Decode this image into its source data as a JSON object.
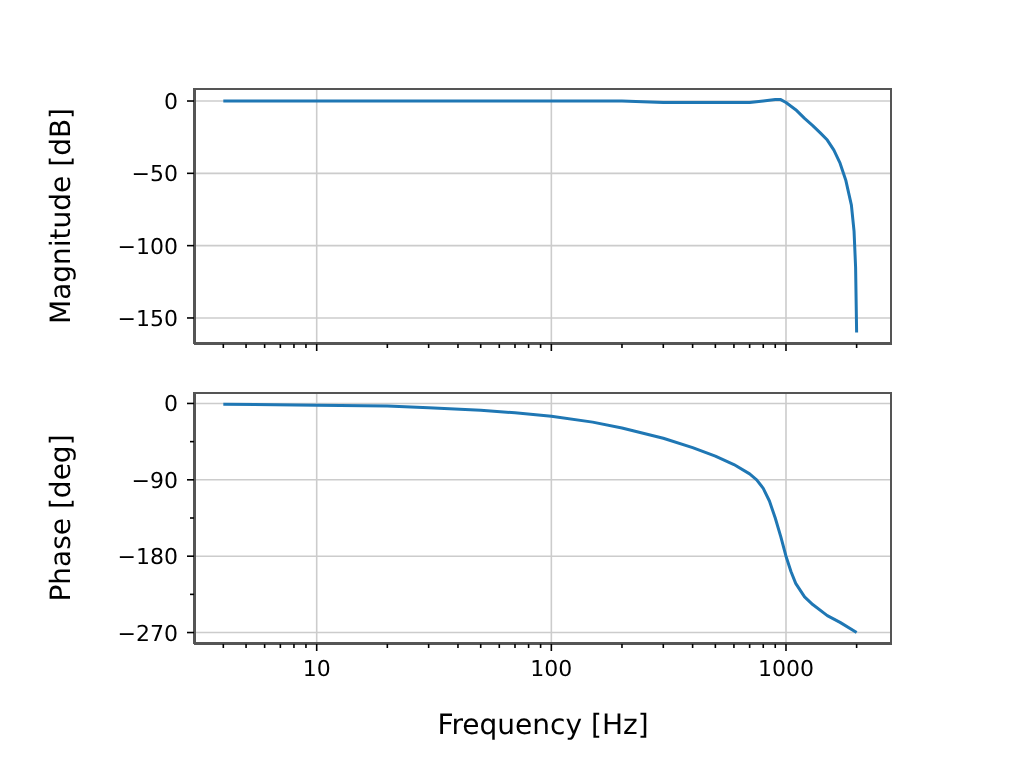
{
  "chart_data": [
    {
      "type": "line",
      "ylabel": "Magnitude [dB]",
      "log": "x",
      "grid": true,
      "tick_labels": "y",
      "x": [
        4,
        10,
        30,
        100,
        200,
        300,
        400,
        500,
        600,
        700,
        800,
        900,
        950,
        1000,
        1100,
        1200,
        1300,
        1400,
        1500,
        1600,
        1700,
        1800,
        1900,
        1950,
        1980,
        2000
      ],
      "series": [
        {
          "color": "#1f77b4",
          "values": [
            0,
            0,
            0,
            0,
            0,
            -1,
            -1,
            -1,
            -1,
            -1,
            0,
            1,
            1,
            -1,
            -6,
            -12,
            -17,
            -22,
            -27,
            -34,
            -43,
            -55,
            -72,
            -90,
            -115,
            -160
          ]
        }
      ],
      "xlim": [
        3,
        2830
      ],
      "xticks": [
        {
          "value": 4,
          "label": null
        },
        {
          "value": 5,
          "label": null
        },
        {
          "value": 6,
          "label": null
        },
        {
          "value": 7,
          "label": null
        },
        {
          "value": 8,
          "label": null
        },
        {
          "value": 9,
          "label": null
        },
        10,
        {
          "value": 20,
          "label": null
        },
        {
          "value": 30,
          "label": null
        },
        {
          "value": 40,
          "label": null
        },
        {
          "value": 50,
          "label": null
        },
        {
          "value": 60,
          "label": null
        },
        {
          "value": 70,
          "label": null
        },
        {
          "value": 80,
          "label": null
        },
        {
          "value": 90,
          "label": null
        },
        100,
        {
          "value": 200,
          "label": null
        },
        {
          "value": 300,
          "label": null
        },
        {
          "value": 400,
          "label": null
        },
        {
          "value": 500,
          "label": null
        },
        {
          "value": 600,
          "label": null
        },
        {
          "value": 700,
          "label": null
        },
        {
          "value": 800,
          "label": null
        },
        {
          "value": 900,
          "label": null
        },
        1000,
        {
          "value": 2000,
          "label": null
        }
      ],
      "ylim": [
        -168,
        9
      ],
      "yticks": [
        0,
        {
          "value": -50,
          "label": "−50"
        },
        {
          "value": -100,
          "label": "−100"
        },
        {
          "value": -150,
          "label": "−150"
        }
      ]
    },
    {
      "type": "line",
      "xlabel": "Frequency [Hz]",
      "ylabel": "Phase [deg]",
      "log": "x",
      "grid": true,
      "x": [
        4,
        10,
        20,
        30,
        50,
        70,
        100,
        150,
        200,
        300,
        400,
        500,
        600,
        700,
        750,
        800,
        850,
        900,
        950,
        1000,
        1050,
        1100,
        1200,
        1300,
        1500,
        1700,
        2000
      ],
      "series": [
        {
          "color": "#1f77b4",
          "values": [
            -1,
            -2,
            -3,
            -5,
            -8,
            -11,
            -15,
            -22,
            -29,
            -41,
            -52,
            -62,
            -72,
            -83,
            -90,
            -100,
            -115,
            -135,
            -157,
            -180,
            -198,
            -212,
            -228,
            -237,
            -250,
            -258,
            -270
          ]
        }
      ],
      "xlim": [
        3,
        2830
      ],
      "xticks": [
        {
          "value": 4,
          "label": null
        },
        {
          "value": 5,
          "label": null
        },
        {
          "value": 6,
          "label": null
        },
        {
          "value": 7,
          "label": null
        },
        {
          "value": 8,
          "label": null
        },
        {
          "value": 9,
          "label": null
        },
        {
          "value": 10,
          "label": "10"
        },
        {
          "value": 20,
          "label": null
        },
        {
          "value": 30,
          "label": null
        },
        {
          "value": 40,
          "label": null
        },
        {
          "value": 50,
          "label": null
        },
        {
          "value": 60,
          "label": null
        },
        {
          "value": 70,
          "label": null
        },
        {
          "value": 80,
          "label": null
        },
        {
          "value": 90,
          "label": null
        },
        {
          "value": 100,
          "label": "100"
        },
        {
          "value": 200,
          "label": null
        },
        {
          "value": 300,
          "label": null
        },
        {
          "value": 400,
          "label": null
        },
        {
          "value": 500,
          "label": null
        },
        {
          "value": 600,
          "label": null
        },
        {
          "value": 700,
          "label": null
        },
        {
          "value": 800,
          "label": null
        },
        {
          "value": 900,
          "label": null
        },
        {
          "value": 1000,
          "label": "1000"
        },
        {
          "value": 2000,
          "label": null
        }
      ],
      "ylim": [
        -283.5,
        13.5
      ],
      "yticks": [
        0,
        {
          "value": -45,
          "label": null
        },
        {
          "value": -90,
          "label": "−90"
        },
        {
          "value": -135,
          "label": null
        },
        {
          "value": -180,
          "label": "−180"
        },
        {
          "value": -225,
          "label": null
        },
        {
          "value": -270,
          "label": "−270"
        }
      ]
    }
  ]
}
